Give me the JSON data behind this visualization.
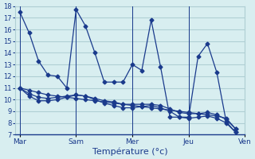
{
  "xlabel": "Température (°c)",
  "ylabel": "",
  "background_color": "#d8eef0",
  "grid_color": "#b0cfd4",
  "line_color": "#1a3a8c",
  "ylim": [
    7,
    18
  ],
  "yticks": [
    7,
    8,
    9,
    10,
    11,
    12,
    13,
    14,
    15,
    16,
    17,
    18
  ],
  "xtick_labels": [
    "Mar",
    "Sam",
    "Mer",
    "Jeu",
    "Ven"
  ],
  "xtick_positions": [
    0,
    6,
    12,
    18,
    24
  ],
  "line1": [
    17.5,
    15.7,
    13.3,
    12.1,
    12.0,
    11.0,
    17.7,
    16.3,
    14.0,
    11.5,
    11.5,
    11.5,
    13.0,
    12.5,
    16.8,
    12.8,
    8.5,
    8.5,
    8.5,
    13.7,
    14.8,
    12.3,
    8.1,
    7.2
  ],
  "line2": [
    11.0,
    10.3,
    9.9,
    9.9,
    10.0,
    10.2,
    10.4,
    10.3,
    10.0,
    9.7,
    9.5,
    9.3,
    9.3,
    9.4,
    9.5,
    9.3,
    9.0,
    8.5,
    8.4,
    8.5,
    8.6,
    8.4,
    8.0,
    7.2
  ],
  "line3": [
    11.0,
    10.5,
    10.2,
    10.1,
    10.2,
    10.3,
    10.4,
    10.3,
    10.1,
    9.9,
    9.8,
    9.6,
    9.6,
    9.6,
    9.6,
    9.5,
    9.2,
    8.9,
    8.8,
    8.8,
    8.9,
    8.7,
    8.3,
    7.5
  ],
  "line4": [
    11.0,
    10.8,
    10.6,
    10.4,
    10.3,
    10.2,
    10.1,
    10.0,
    9.9,
    9.8,
    9.7,
    9.6,
    9.5,
    9.4,
    9.3,
    9.2,
    9.1,
    9.0,
    8.9,
    8.8,
    8.7,
    8.6,
    8.4,
    7.5
  ],
  "n_points": 24
}
